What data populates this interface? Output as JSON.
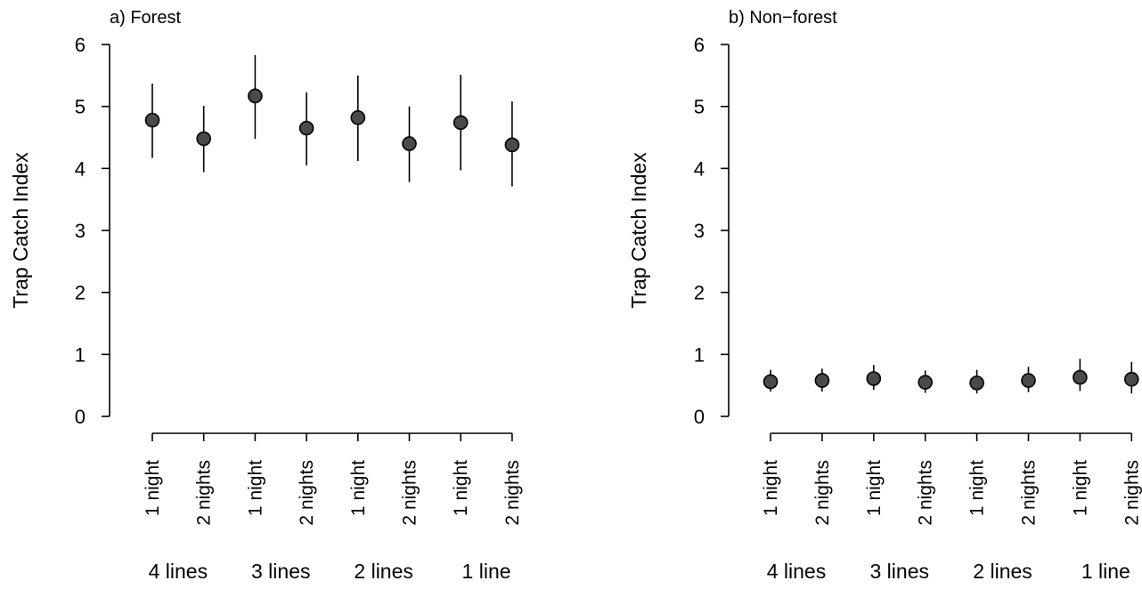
{
  "colors": {
    "point_fill": "#4a4a4a",
    "stroke": "#000000",
    "background": "#ffffff"
  },
  "chart_data": [
    {
      "type": "scatter",
      "title": "a) Forest",
      "xlabel": "",
      "ylabel": "Trap Catch Index",
      "ylim": [
        0,
        6
      ],
      "yticks": [
        "0",
        "1",
        "2",
        "3",
        "4",
        "5",
        "6"
      ],
      "categories": [
        "1 night",
        "2 nights",
        "1 night",
        "2 nights",
        "1 night",
        "2 nights",
        "1 night",
        "2 nights"
      ],
      "groups": [
        "4 lines",
        "3 lines",
        "2 lines",
        "1 line"
      ],
      "values": [
        4.78,
        4.48,
        5.17,
        4.65,
        4.82,
        4.4,
        4.74,
        4.38
      ],
      "lower": [
        4.17,
        3.94,
        4.48,
        4.05,
        4.12,
        3.78,
        3.97,
        3.71
      ],
      "upper": [
        5.37,
        5.01,
        5.83,
        5.23,
        5.5,
        5.0,
        5.51,
        5.08
      ],
      "grid": false,
      "error_bars": true
    },
    {
      "type": "scatter",
      "title": "b) Non−forest",
      "xlabel": "",
      "ylabel": "Trap Catch Index",
      "ylim": [
        0,
        6
      ],
      "yticks": [
        "0",
        "1",
        "2",
        "3",
        "4",
        "5",
        "6"
      ],
      "categories": [
        "1 night",
        "2 nights",
        "1 night",
        "2 nights",
        "1 night",
        "2 nights",
        "1 night",
        "2 nights"
      ],
      "groups": [
        "4 lines",
        "3 lines",
        "2 lines",
        "1 line"
      ],
      "values": [
        0.56,
        0.58,
        0.61,
        0.55,
        0.54,
        0.58,
        0.63,
        0.6
      ],
      "lower": [
        0.4,
        0.4,
        0.43,
        0.38,
        0.37,
        0.39,
        0.41,
        0.37
      ],
      "upper": [
        0.75,
        0.77,
        0.83,
        0.74,
        0.75,
        0.8,
        0.93,
        0.88
      ],
      "grid": false,
      "error_bars": true
    }
  ]
}
